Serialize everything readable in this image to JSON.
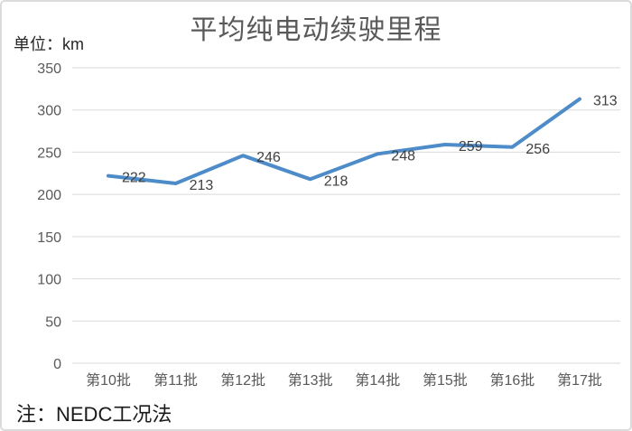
{
  "chart_data": {
    "type": "line",
    "title": "平均纯电动续驶里程",
    "unit_label": "单位：km",
    "note": "注：NEDC工况法",
    "categories": [
      "第10批",
      "第11批",
      "第12批",
      "第13批",
      "第14批",
      "第15批",
      "第16批",
      "第17批"
    ],
    "values": [
      222,
      213,
      246,
      218,
      248,
      259,
      256,
      313
    ],
    "data_labels_visible": true,
    "xlabel": "",
    "ylabel": "",
    "ylim": [
      0,
      350
    ],
    "yticks": [
      0,
      50,
      100,
      150,
      200,
      250,
      300,
      350
    ],
    "grid": true,
    "legend_position": "none",
    "line_color": "#4D8CC9",
    "grid_color": "#D9D9D9",
    "axis_label_color": "#595959",
    "data_label_color": "#404040",
    "background_color": "#FFFFFF",
    "border_color": "#DBDBDB"
  }
}
